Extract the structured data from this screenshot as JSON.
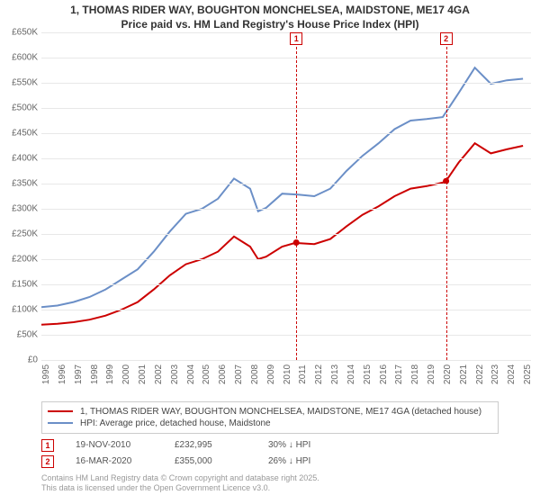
{
  "title_line1": "1, THOMAS RIDER WAY, BOUGHTON MONCHELSEA, MAIDSTONE, ME17 4GA",
  "title_line2": "Price paid vs. HM Land Registry's House Price Index (HPI)",
  "chart": {
    "type": "line",
    "x_years": [
      1995,
      1996,
      1997,
      1998,
      1999,
      2000,
      2001,
      2002,
      2003,
      2004,
      2005,
      2006,
      2007,
      2008,
      2009,
      2010,
      2011,
      2012,
      2013,
      2014,
      2015,
      2016,
      2017,
      2018,
      2019,
      2020,
      2021,
      2022,
      2023,
      2024,
      2025
    ],
    "y_ticks": [
      0,
      50,
      100,
      150,
      200,
      250,
      300,
      350,
      400,
      450,
      500,
      550,
      600,
      650
    ],
    "y_tick_labels": [
      "£0",
      "£50K",
      "£100K",
      "£150K",
      "£200K",
      "£250K",
      "£300K",
      "£350K",
      "£400K",
      "£450K",
      "£500K",
      "£550K",
      "£600K",
      "£650K"
    ],
    "ylim": [
      0,
      650
    ],
    "xlim": [
      1995,
      2025.5
    ],
    "background_color": "#ffffff",
    "grid_color": "#e8e8e8",
    "axis_color": "#666666",
    "label_fontsize": 10,
    "series": [
      {
        "key": "property",
        "color": "#cc0000",
        "width": 2,
        "points": [
          [
            1995,
            70
          ],
          [
            1996,
            72
          ],
          [
            1997,
            75
          ],
          [
            1998,
            80
          ],
          [
            1999,
            88
          ],
          [
            2000,
            100
          ],
          [
            2001,
            115
          ],
          [
            2002,
            140
          ],
          [
            2003,
            168
          ],
          [
            2004,
            190
          ],
          [
            2005,
            200
          ],
          [
            2006,
            215
          ],
          [
            2007,
            245
          ],
          [
            2008,
            225
          ],
          [
            2008.5,
            200
          ],
          [
            2009,
            205
          ],
          [
            2010,
            225
          ],
          [
            2010.88,
            233
          ],
          [
            2011,
            232
          ],
          [
            2012,
            230
          ],
          [
            2013,
            240
          ],
          [
            2014,
            265
          ],
          [
            2015,
            288
          ],
          [
            2016,
            305
          ],
          [
            2017,
            325
          ],
          [
            2018,
            340
          ],
          [
            2019,
            345
          ],
          [
            2020,
            352
          ],
          [
            2020.2,
            355
          ],
          [
            2021,
            392
          ],
          [
            2022,
            430
          ],
          [
            2023,
            410
          ],
          [
            2024,
            418
          ],
          [
            2025,
            425
          ]
        ]
      },
      {
        "key": "hpi",
        "color": "#6b8fc7",
        "width": 2,
        "points": [
          [
            1995,
            105
          ],
          [
            1996,
            108
          ],
          [
            1997,
            115
          ],
          [
            1998,
            125
          ],
          [
            1999,
            140
          ],
          [
            2000,
            160
          ],
          [
            2001,
            180
          ],
          [
            2002,
            215
          ],
          [
            2003,
            255
          ],
          [
            2004,
            290
          ],
          [
            2005,
            300
          ],
          [
            2006,
            320
          ],
          [
            2007,
            360
          ],
          [
            2008,
            340
          ],
          [
            2008.5,
            295
          ],
          [
            2009,
            302
          ],
          [
            2010,
            330
          ],
          [
            2011,
            328
          ],
          [
            2012,
            325
          ],
          [
            2013,
            340
          ],
          [
            2014,
            375
          ],
          [
            2015,
            405
          ],
          [
            2016,
            430
          ],
          [
            2017,
            458
          ],
          [
            2018,
            475
          ],
          [
            2019,
            478
          ],
          [
            2020,
            482
          ],
          [
            2021,
            530
          ],
          [
            2022,
            580
          ],
          [
            2023,
            548
          ],
          [
            2024,
            555
          ],
          [
            2025,
            558
          ]
        ]
      }
    ],
    "transactions": [
      {
        "idx": "1",
        "year": 2010.88,
        "price_k": 233,
        "color": "#cc0000"
      },
      {
        "idx": "2",
        "year": 2020.21,
        "price_k": 355,
        "color": "#cc0000"
      }
    ]
  },
  "legend": {
    "items": [
      {
        "color": "#cc0000",
        "label": "1, THOMAS RIDER WAY, BOUGHTON MONCHELSEA, MAIDSTONE, ME17 4GA (detached house)"
      },
      {
        "color": "#6b8fc7",
        "label": "HPI: Average price, detached house, Maidstone"
      }
    ]
  },
  "transactions_table": [
    {
      "idx": "1",
      "color": "#cc0000",
      "date": "19-NOV-2010",
      "price": "£232,995",
      "diff": "30% ↓ HPI"
    },
    {
      "idx": "2",
      "color": "#cc0000",
      "date": "16-MAR-2020",
      "price": "£355,000",
      "diff": "26% ↓ HPI"
    }
  ],
  "footer_line1": "Contains HM Land Registry data © Crown copyright and database right 2025.",
  "footer_line2": "This data is licensed under the Open Government Licence v3.0."
}
